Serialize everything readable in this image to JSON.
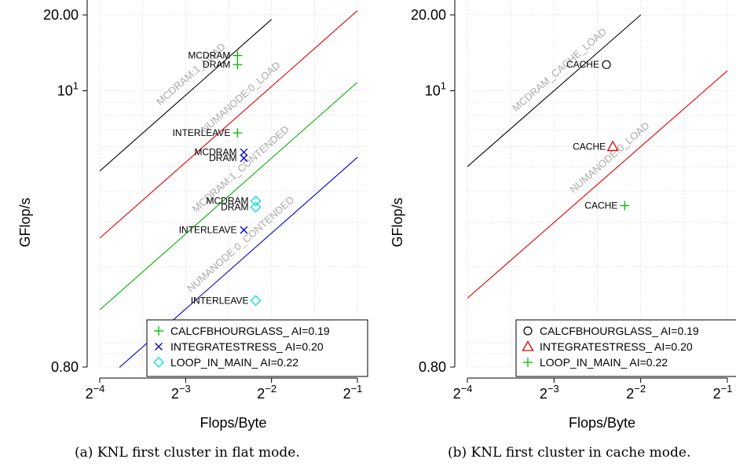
{
  "chart_data": [
    {
      "type": "scatter",
      "caption": "(a) KNL first cluster in flat mode.",
      "xlabel": "Flops/Byte",
      "ylabel": "GFlop/s",
      "x_scale": "log2",
      "y_scale": "log",
      "xlim": [
        0.0625,
        0.5
      ],
      "ylim": [
        0.8,
        20
      ],
      "x_ticks": [
        {
          "base": "2",
          "exp": "−4",
          "value": 0.0625
        },
        {
          "base": "2",
          "exp": "−3",
          "value": 0.125
        },
        {
          "base": "2",
          "exp": "−2",
          "value": 0.25
        },
        {
          "base": "2",
          "exp": "−1",
          "value": 0.5
        }
      ],
      "y_ticks": [
        {
          "text": "20.00",
          "value": 20
        },
        {
          "text": "10",
          "sup": "1",
          "value": 10
        },
        {
          "text": "0.80",
          "value": 0.8
        }
      ],
      "grid": true,
      "legend_position": "bottom-right",
      "rooflines": [
        {
          "label": "MCDRAM:1_LOAD",
          "color": "#000000",
          "x": [
            0.0625,
            0.25
          ],
          "y": [
            4.8,
            19.2
          ]
        },
        {
          "label": "NUMANODE:0_LOAD",
          "color": "#e00000",
          "x": [
            0.0625,
            0.5
          ],
          "y": [
            2.6,
            20.8
          ]
        },
        {
          "label": "MCDRAM:1_CONTENDED",
          "color": "#00b000",
          "x": [
            0.0625,
            0.5
          ],
          "y": [
            1.35,
            10.8
          ]
        },
        {
          "label": "NUMANODE:0_CONTENDED",
          "color": "#0000cc",
          "x": [
            0.0625,
            0.5
          ],
          "y": [
            0.68,
            5.44
          ]
        }
      ],
      "series": [
        {
          "name": "CALCFBHOURGLASS_ AI=0.19",
          "marker": "plus",
          "color": "#00bb00",
          "points": [
            {
              "x": 0.19,
              "y": 13.8,
              "label": "MCDRAM"
            },
            {
              "x": 0.19,
              "y": 12.7,
              "label": "DRAM"
            },
            {
              "x": 0.19,
              "y": 6.8,
              "label": "INTERLEAVE"
            }
          ]
        },
        {
          "name": "INTEGRATESTRESS_ AI=0.20",
          "marker": "cross",
          "color": "#0000cc",
          "points": [
            {
              "x": 0.2,
              "y": 5.7,
              "label": "MCDRAM"
            },
            {
              "x": 0.2,
              "y": 5.4,
              "label": "DRAM"
            },
            {
              "x": 0.2,
              "y": 2.8,
              "label": "INTERLEAVE"
            }
          ]
        },
        {
          "name": "LOOP_IN_MAIN_ AI=0.22",
          "marker": "diamond",
          "color": "#00dddd",
          "points": [
            {
              "x": 0.22,
              "y": 3.65,
              "label": "MCDRAM"
            },
            {
              "x": 0.22,
              "y": 3.45,
              "label": "DRAM"
            },
            {
              "x": 0.22,
              "y": 1.47,
              "label": "INTERLEAVE"
            }
          ]
        }
      ]
    },
    {
      "type": "scatter",
      "caption": "(b) KNL first cluster in cache mode.",
      "xlabel": "Flops/Byte",
      "ylabel": "GFlop/s",
      "x_scale": "log2",
      "y_scale": "log",
      "xlim": [
        0.0625,
        0.5
      ],
      "ylim": [
        0.8,
        20
      ],
      "x_ticks": [
        {
          "base": "2",
          "exp": "−4",
          "value": 0.0625
        },
        {
          "base": "2",
          "exp": "−3",
          "value": 0.125
        },
        {
          "base": "2",
          "exp": "−2",
          "value": 0.25
        },
        {
          "base": "2",
          "exp": "−1",
          "value": 0.5
        }
      ],
      "y_ticks": [
        {
          "text": "20.00",
          "value": 20
        },
        {
          "text": "10",
          "sup": "1",
          "value": 10
        },
        {
          "text": "0.80",
          "value": 0.8
        }
      ],
      "grid": true,
      "legend_position": "bottom-right",
      "rooflines": [
        {
          "label": "MCDRAM_CACHE_LOAD",
          "color": "#000000",
          "x": [
            0.0625,
            0.25
          ],
          "y": [
            5.0,
            20.0
          ]
        },
        {
          "label": "NUMANODE:0_LOAD",
          "color": "#e00000",
          "x": [
            0.0625,
            0.5
          ],
          "y": [
            1.5,
            12.0
          ]
        }
      ],
      "series": [
        {
          "name": "CALCFBHOURGLASS_ AI=0.19",
          "marker": "circle",
          "color": "#000000",
          "points": [
            {
              "x": 0.19,
              "y": 12.7,
              "label": "CACHE"
            }
          ]
        },
        {
          "name": "INTEGRATESTRESS_ AI=0.20",
          "marker": "triangle",
          "color": "#e00000",
          "points": [
            {
              "x": 0.2,
              "y": 6.0,
              "label": "CACHE"
            }
          ]
        },
        {
          "name": "LOOP_IN_MAIN_ AI=0.22",
          "marker": "plus",
          "color": "#00bb00",
          "points": [
            {
              "x": 0.22,
              "y": 3.5,
              "label": "CACHE"
            }
          ]
        }
      ]
    }
  ]
}
